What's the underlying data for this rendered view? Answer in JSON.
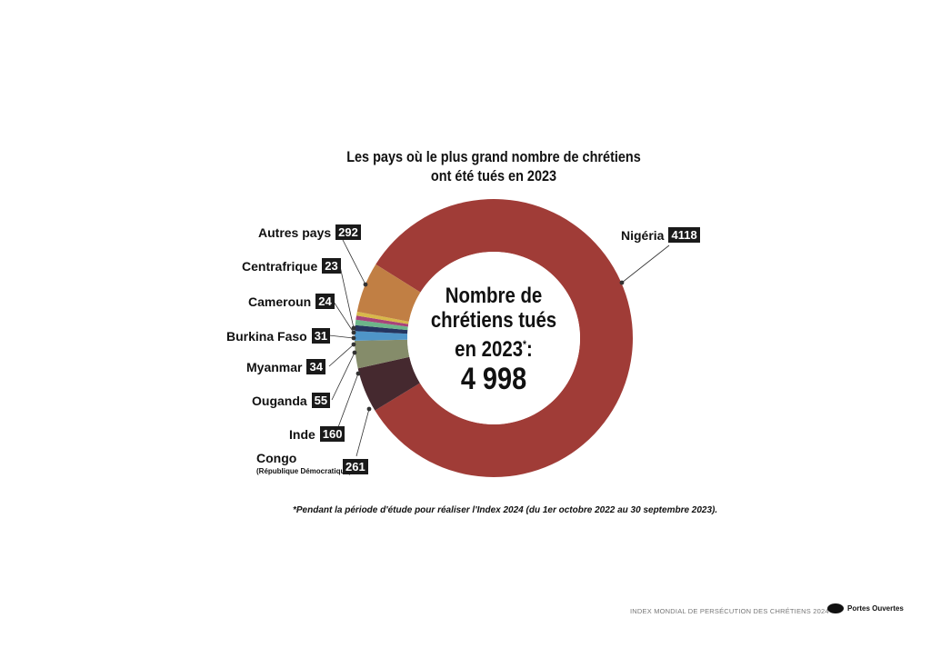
{
  "chart_data": {
    "type": "pie",
    "variant": "donut",
    "title": "Les pays où le plus grand nombre de chrétiens ont été tués en 2023",
    "title_lines": [
      "Les pays où le plus grand nombre de chrétiens",
      "ont été tués en 2023"
    ],
    "categories": [
      "Nigéria",
      "Congo",
      "Inde",
      "Ouganda",
      "Myanmar",
      "Burkina Faso",
      "Cameroun",
      "Centrafrique",
      "Autres pays"
    ],
    "values": [
      4118,
      261,
      160,
      55,
      34,
      31,
      24,
      23,
      292
    ],
    "colors": [
      "#a03c37",
      "#45292f",
      "#858c6a",
      "#4f95c8",
      "#253560",
      "#6db58a",
      "#a8437a",
      "#d8b84a",
      "#c17f44"
    ],
    "labels": {
      "nigeria": "Nigéria",
      "congo": "Congo",
      "congo_sub": "(République Démocratique)",
      "inde": "Inde",
      "ouganda": "Ouganda",
      "myanmar": "Myanmar",
      "burkina": "Burkina Faso",
      "cameroun": "Cameroun",
      "centrafrique": "Centrafrique",
      "autres": "Autres pays"
    },
    "value_labels": {
      "nigeria": "4118",
      "congo": "261",
      "inde": "160",
      "ouganda": "55",
      "myanmar": "34",
      "burkina": "31",
      "cameroun": "24",
      "centrafrique": "23",
      "autres": "292"
    },
    "center_text": {
      "line1": "Nombre de",
      "line2": "chrétiens tués",
      "line3": "en 2023",
      "star": "*",
      "colon": ":",
      "total": "4 998"
    }
  },
  "note": "*Pendant la période d'étude pour réaliser l'Index 2024 (du 1er octobre 2022 au 30 septembre 2023).",
  "footer": "INDEX MONDIAL DE PERSÉCUTION DES CHRÉTIENS 2024",
  "logo": "Portes Ouvertes"
}
